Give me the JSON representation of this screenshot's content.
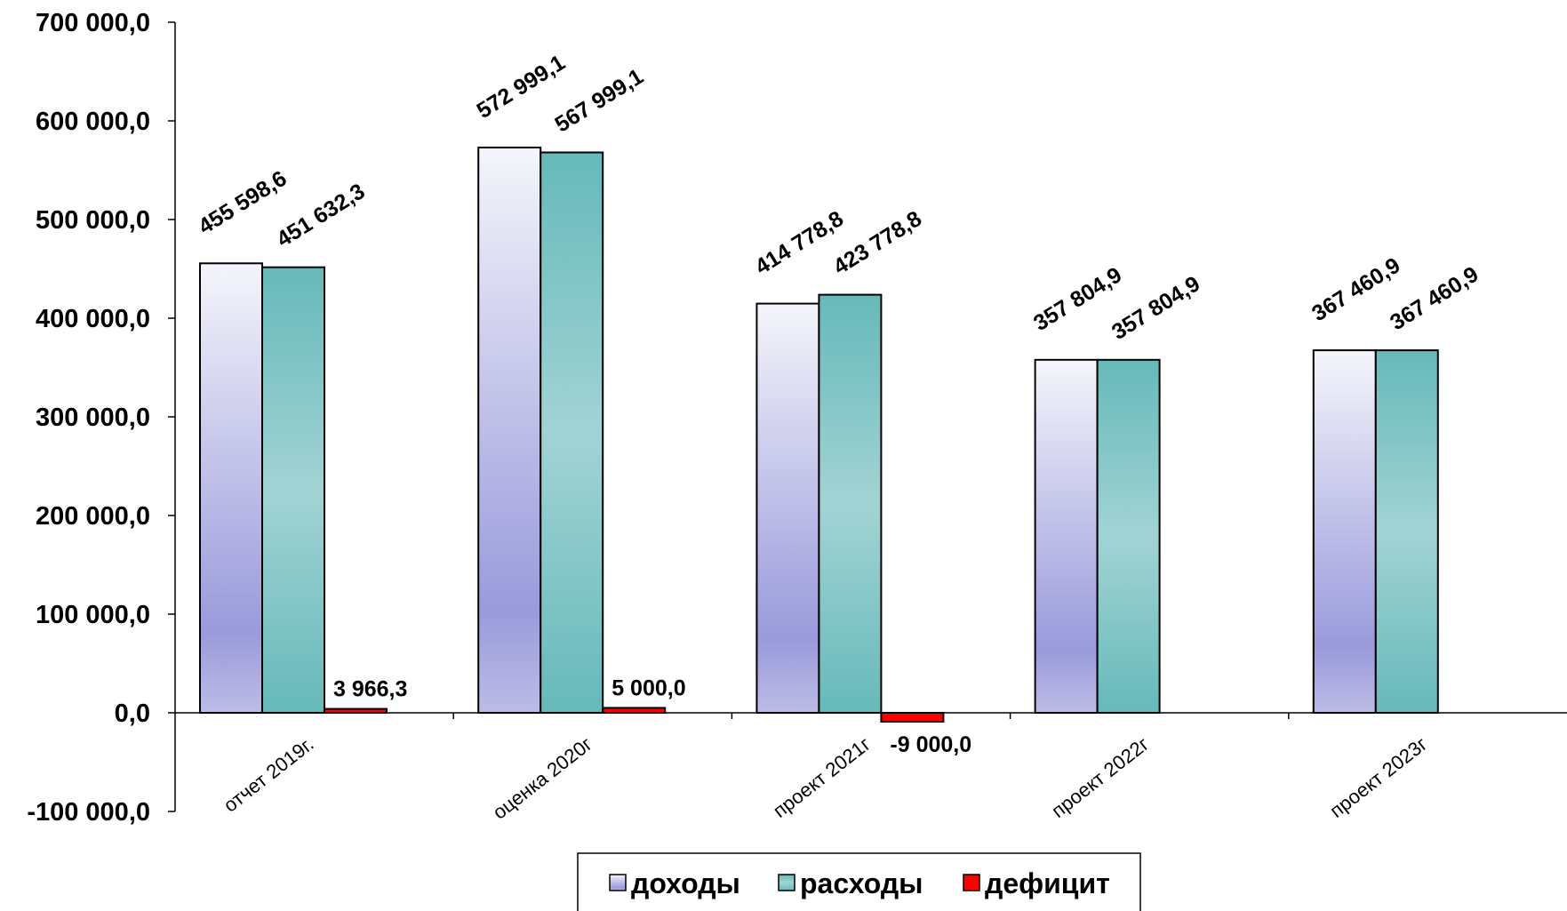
{
  "chart_data": {
    "type": "bar",
    "categories": [
      "отчет 2019г.",
      "оценка 2020г",
      "проект 2021г",
      "проект 2022г",
      "проект 2023г"
    ],
    "series": [
      {
        "name": "доходы",
        "values": [
          455598.6,
          572999.1,
          414778.8,
          357804.9,
          367460.9
        ],
        "labels": [
          "455 598,6",
          "572 999,1",
          "414 778,8",
          "357 804,9",
          "367 460,9"
        ],
        "color": "#9999dd"
      },
      {
        "name": "расходы",
        "values": [
          451632.3,
          567999.1,
          423778.8,
          357804.9,
          367460.9
        ],
        "labels": [
          "451 632,3",
          "567 999,1",
          "423 778,8",
          "357 804,9",
          "367 460,9"
        ],
        "color": "#66bbbb"
      },
      {
        "name": "дефицит",
        "values": [
          3966.3,
          5000.0,
          -9000.0,
          null,
          null
        ],
        "labels": [
          "3 966,3",
          "5 000,0",
          "-9 000,0",
          "",
          ""
        ],
        "color": "#ff0000"
      }
    ],
    "ylim": [
      -100000,
      700000
    ],
    "yticks": [
      -100000,
      0,
      100000,
      200000,
      300000,
      400000,
      500000,
      600000,
      700000
    ],
    "ytick_labels": [
      "-100 000,0",
      "0,0",
      "100 000,0",
      "200 000,0",
      "300 000,0",
      "400 000,0",
      "500 000,0",
      "600 000,0",
      "700 000,0"
    ],
    "legend_position": "bottom-center",
    "grid": false
  }
}
